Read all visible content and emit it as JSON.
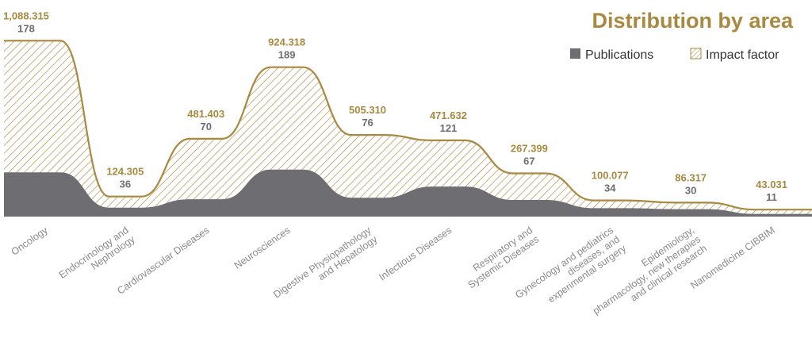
{
  "title": "Distribution by area",
  "legend": {
    "publications": "Publications",
    "impact_factor": "Impact factor"
  },
  "colors": {
    "accent": "#a8893f",
    "publications": "#6e6e72",
    "hatch": "#a8893f",
    "category": "#8a8a8a"
  },
  "chart_data": {
    "type": "area",
    "categories": [
      [
        "Oncology"
      ],
      [
        "Endocrinology and",
        "Nephrology"
      ],
      [
        "Cardiovascular Diseases"
      ],
      [
        "Neurosciences"
      ],
      [
        "Digestive Physiopathology",
        "and Hepatology"
      ],
      [
        "Infectious Diseases"
      ],
      [
        "Respiratory and",
        "Systemic Diseases"
      ],
      [
        "Gynecology and pediatrics",
        "diseases, and",
        "experimental surgery"
      ],
      [
        "Epidemiology,",
        "pharmacology, new therapies",
        "and clinical research"
      ],
      [
        "Nanomedicine CIBBIM"
      ]
    ],
    "series": [
      {
        "name": "Impact factor",
        "values": [
          1088.315,
          124.305,
          481.403,
          924.318,
          505.31,
          471.632,
          267.399,
          100.077,
          86.317,
          43.031
        ],
        "labels": [
          "1,088.315",
          "124.305",
          "481.403",
          "924.318",
          "505.310",
          "471.632",
          "267.399",
          "100.077",
          "86.317",
          "43.031"
        ]
      },
      {
        "name": "Publications",
        "values": [
          178,
          36,
          70,
          189,
          76,
          121,
          67,
          34,
          30,
          11
        ],
        "labels": [
          "178",
          "36",
          "70",
          "189",
          "76",
          "121",
          "67",
          "34",
          "30",
          "11"
        ]
      }
    ]
  }
}
